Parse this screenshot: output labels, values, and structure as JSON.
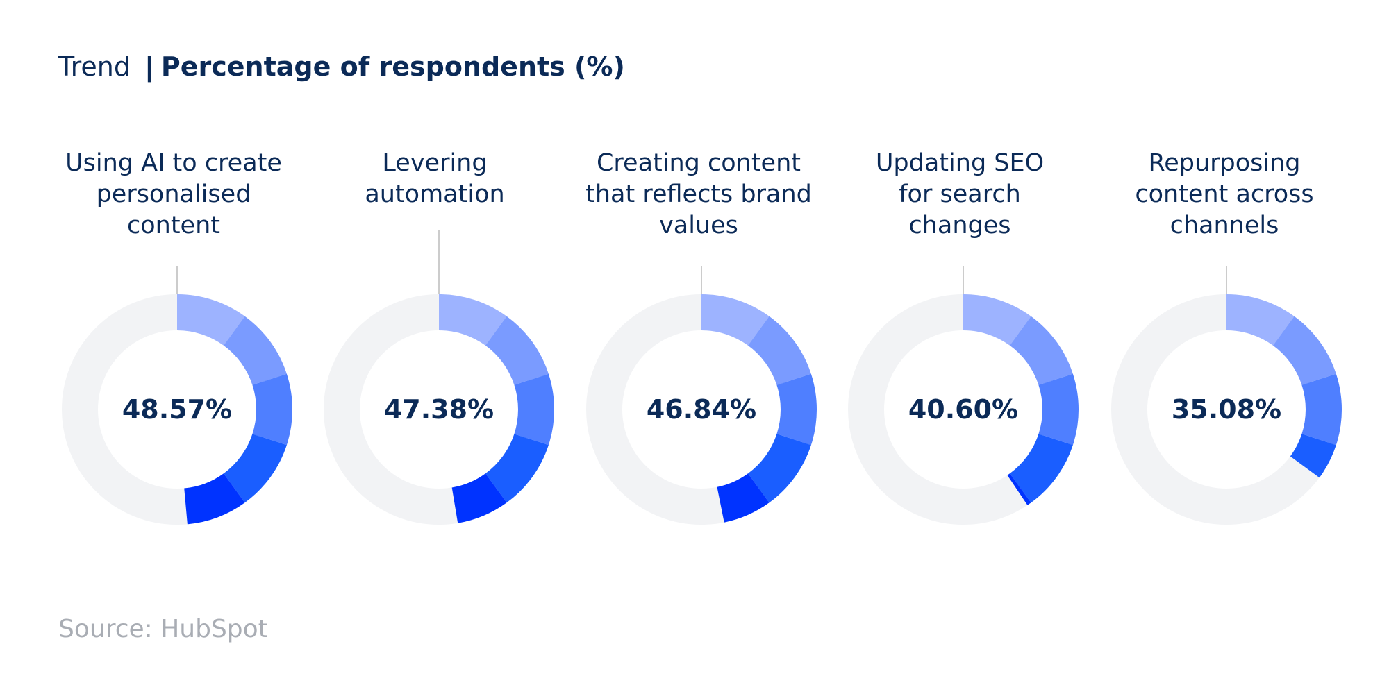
{
  "header": {
    "trend_label": "Trend",
    "separator": "|",
    "subtitle": "Percentage of respondents (%)"
  },
  "source": "Source: HubSpot",
  "chart_data": {
    "type": "pie",
    "title": "Trend | Percentage of respondents (%)",
    "categories": [
      "Using AI to create\npersonalised\ncontent",
      "Levering\nautomation",
      "Creating content\nthat reflects brand\nvalues",
      "Updating SEO\nfor search\nchanges",
      "Repurposing\ncontent across\nchannels"
    ],
    "values": [
      48.57,
      47.38,
      46.84,
      40.6,
      35.08
    ],
    "value_labels": [
      "48.57%",
      "47.38%",
      "46.84%",
      "40.60%",
      "35.08%"
    ],
    "ylim": [
      0,
      100
    ],
    "colors": {
      "gradient": [
        "#9db3ff",
        "#7a9bff",
        "#4f7fff",
        "#1a5eff",
        "#0033ff"
      ],
      "track": "#f2f3f5",
      "text": "#0b2a57",
      "leader": "#cccccc"
    }
  }
}
